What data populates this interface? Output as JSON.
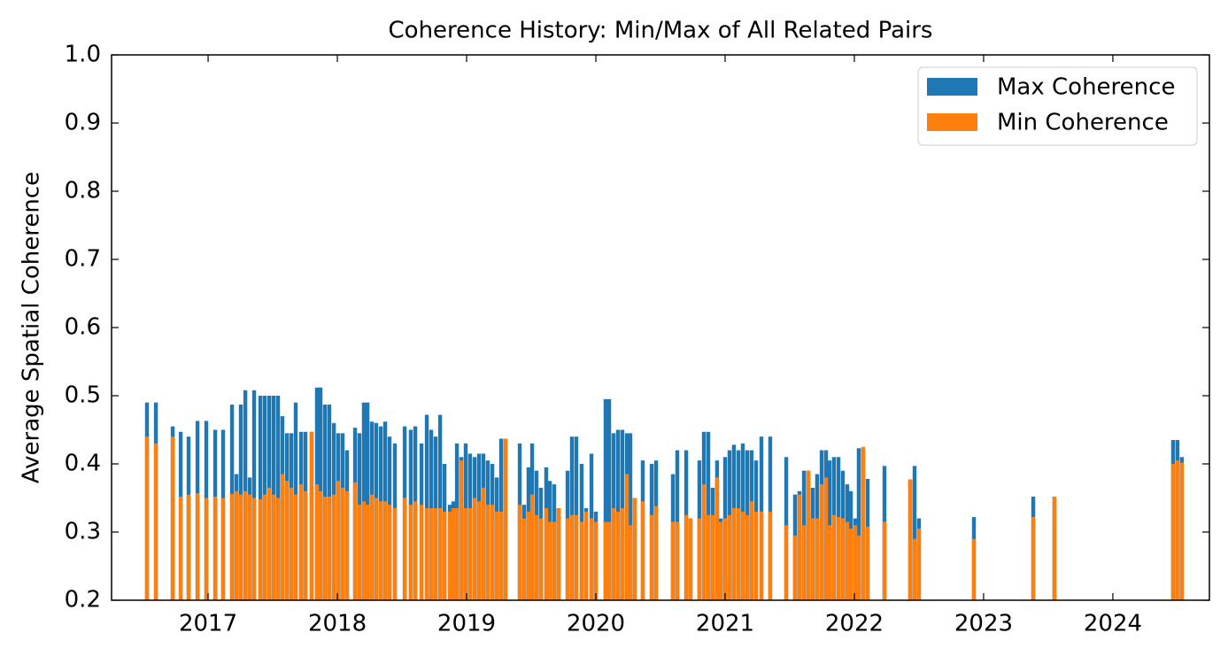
{
  "chart_data": {
    "type": "bar",
    "title": "Coherence History: Min/Max of All Related Pairs",
    "y_label": "Average Spatial Coherence",
    "x": [
      2016.527,
      2016.596,
      2016.726,
      2016.788,
      2016.849,
      2016.918,
      2016.986,
      2017.055,
      2017.116,
      2017.185,
      2017.219,
      2017.253,
      2017.288,
      2017.322,
      2017.356,
      2017.404,
      2017.438,
      2017.473,
      2017.507,
      2017.541,
      2017.575,
      2017.61,
      2017.644,
      2017.678,
      2017.719,
      2017.753,
      2017.801,
      2017.842,
      2017.87,
      2017.904,
      2017.938,
      2017.973,
      2018.007,
      2018.041,
      2018.075,
      2018.137,
      2018.171,
      2018.205,
      2018.233,
      2018.267,
      2018.301,
      2018.336,
      2018.37,
      2018.404,
      2018.445,
      2018.521,
      2018.568,
      2018.603,
      2018.651,
      2018.692,
      2018.726,
      2018.76,
      2018.795,
      2018.829,
      2018.87,
      2018.897,
      2018.925,
      2018.959,
      2018.993,
      2019.027,
      2019.062,
      2019.096,
      2019.13,
      2019.164,
      2019.199,
      2019.233,
      2019.267,
      2019.301,
      2019.411,
      2019.445,
      2019.479,
      2019.507,
      2019.541,
      2019.575,
      2019.616,
      2019.644,
      2019.678,
      2019.712,
      2019.781,
      2019.815,
      2019.849,
      2019.89,
      2019.925,
      2019.966,
      2020.0,
      2020.075,
      2020.103,
      2020.137,
      2020.171,
      2020.205,
      2020.24,
      2020.267,
      2020.301,
      2020.363,
      2020.432,
      2020.466,
      2020.596,
      2020.63,
      2020.699,
      2020.733,
      2020.801,
      2020.836,
      2020.87,
      2020.904,
      2020.938,
      2020.966,
      2021.0,
      2021.034,
      2021.068,
      2021.103,
      2021.137,
      2021.171,
      2021.205,
      2021.24,
      2021.281,
      2021.349,
      2021.473,
      2021.541,
      2021.575,
      2021.61,
      2021.644,
      2021.678,
      2021.712,
      2021.747,
      2021.781,
      2021.808,
      2021.842,
      2021.877,
      2021.911,
      2021.945,
      2021.973,
      2022.007,
      2022.034,
      2022.068,
      2022.103,
      2022.233,
      2022.432,
      2022.466,
      2022.5,
      2022.925,
      2023.384,
      2023.548,
      2024.466,
      2024.5,
      2024.534
    ],
    "series": [
      {
        "name": "Max Coherence",
        "color": "#1f77b4",
        "values": [
          0.49,
          0.49,
          0.455,
          0.447,
          0.44,
          0.463,
          0.463,
          0.45,
          0.45,
          0.487,
          0.385,
          0.487,
          0.508,
          0.38,
          0.508,
          0.5,
          0.5,
          0.5,
          0.5,
          0.5,
          0.47,
          0.445,
          0.445,
          0.49,
          0.447,
          0.447,
          0.447,
          0.512,
          0.512,
          0.487,
          0.487,
          0.46,
          0.445,
          0.445,
          0.42,
          0.453,
          0.445,
          0.49,
          0.49,
          0.462,
          0.46,
          0.455,
          0.462,
          0.44,
          0.43,
          0.455,
          0.45,
          0.455,
          0.43,
          0.472,
          0.45,
          0.44,
          0.472,
          0.4,
          0.34,
          0.345,
          0.43,
          0.41,
          0.43,
          0.415,
          0.41,
          0.415,
          0.415,
          0.405,
          0.4,
          0.38,
          0.437,
          0.437,
          0.43,
          0.34,
          0.395,
          0.43,
          0.39,
          0.365,
          0.395,
          0.375,
          0.37,
          0.335,
          0.39,
          0.44,
          0.44,
          0.4,
          0.335,
          0.415,
          0.33,
          0.495,
          0.495,
          0.445,
          0.45,
          0.45,
          0.445,
          0.445,
          0.35,
          0.405,
          0.4,
          0.405,
          0.385,
          0.42,
          0.42,
          0.32,
          0.405,
          0.447,
          0.447,
          0.365,
          0.405,
          0.32,
          0.41,
          0.42,
          0.428,
          0.42,
          0.43,
          0.42,
          0.42,
          0.405,
          0.44,
          0.44,
          0.41,
          0.355,
          0.36,
          0.39,
          0.39,
          0.365,
          0.385,
          0.42,
          0.42,
          0.405,
          0.41,
          0.41,
          0.39,
          0.37,
          0.36,
          0.32,
          0.423,
          0.423,
          0.378,
          0.397,
          0.377,
          0.397,
          0.32,
          0.322,
          0.352,
          0.352,
          0.435,
          0.435,
          0.41
        ]
      },
      {
        "name": "Min Coherence",
        "color": "#ff7f0e",
        "values": [
          0.44,
          0.43,
          0.44,
          0.352,
          0.355,
          0.357,
          0.35,
          0.352,
          0.35,
          0.356,
          0.36,
          0.355,
          0.36,
          0.355,
          0.35,
          0.348,
          0.355,
          0.365,
          0.355,
          0.35,
          0.385,
          0.375,
          0.365,
          0.355,
          0.37,
          0.36,
          0.447,
          0.37,
          0.36,
          0.352,
          0.352,
          0.355,
          0.375,
          0.365,
          0.36,
          0.373,
          0.34,
          0.345,
          0.34,
          0.355,
          0.35,
          0.345,
          0.345,
          0.34,
          0.335,
          0.35,
          0.34,
          0.345,
          0.34,
          0.335,
          0.335,
          0.335,
          0.335,
          0.33,
          0.33,
          0.335,
          0.335,
          0.405,
          0.335,
          0.335,
          0.35,
          0.345,
          0.365,
          0.34,
          0.34,
          0.33,
          0.33,
          0.437,
          0.34,
          0.32,
          0.33,
          0.355,
          0.325,
          0.32,
          0.335,
          0.315,
          0.315,
          0.335,
          0.32,
          0.325,
          0.325,
          0.315,
          0.33,
          0.32,
          0.315,
          0.315,
          0.315,
          0.335,
          0.33,
          0.335,
          0.385,
          0.31,
          0.35,
          0.345,
          0.325,
          0.338,
          0.315,
          0.315,
          0.325,
          0.32,
          0.32,
          0.37,
          0.325,
          0.325,
          0.38,
          0.315,
          0.32,
          0.325,
          0.335,
          0.335,
          0.33,
          0.325,
          0.345,
          0.33,
          0.33,
          0.33,
          0.31,
          0.295,
          0.355,
          0.31,
          0.39,
          0.32,
          0.32,
          0.37,
          0.38,
          0.31,
          0.325,
          0.322,
          0.32,
          0.315,
          0.305,
          0.31,
          0.295,
          0.425,
          0.308,
          0.315,
          0.377,
          0.29,
          0.305,
          0.29,
          0.322,
          0.352,
          0.4,
          0.405,
          0.402
        ]
      }
    ],
    "xlim": [
      2016.253,
      2024.747
    ],
    "xticks": [
      2017,
      2018,
      2019,
      2020,
      2021,
      2022,
      2023,
      2024
    ],
    "ylim": [
      0.2,
      1.0
    ],
    "yticks": [
      0.2,
      0.3,
      0.4,
      0.5,
      0.6,
      0.7,
      0.8,
      0.9,
      {
        "value": 1.0,
        "label": "1.0"
      }
    ],
    "legend": "upper right"
  }
}
